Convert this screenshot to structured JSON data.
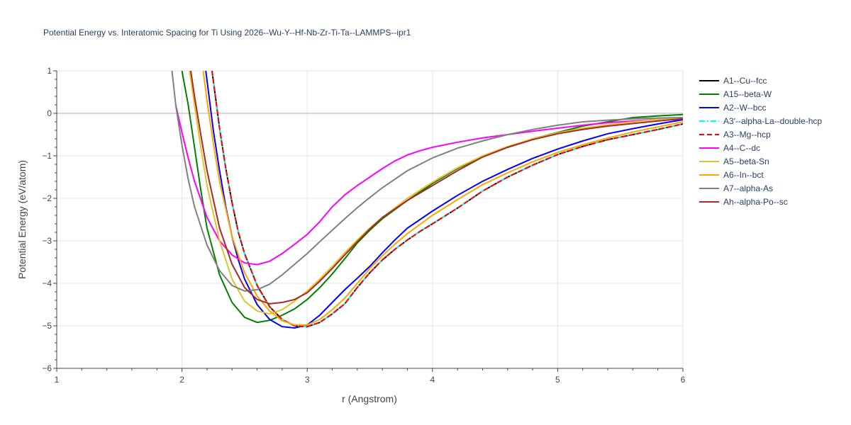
{
  "chart_data": {
    "type": "line",
    "title": "Potential Energy vs. Interatomic Spacing for Ti Using 2026--Wu-Y--Hf-Nb-Zr-Ti-Ta--LAMMPS--ipr1",
    "xlabel": "r (Angstrom)",
    "ylabel": "Potential Energy (eV/atom)",
    "xlim": [
      1,
      6
    ],
    "ylim": [
      -6,
      1
    ],
    "xticks": [
      1,
      2,
      3,
      4,
      5,
      6
    ],
    "yticks": [
      -6,
      -5,
      -4,
      -3,
      -2,
      -1,
      0,
      1
    ],
    "xtick_labels": [
      "1",
      "2",
      "3",
      "4",
      "5",
      "6"
    ],
    "ytick_labels": [
      "−6",
      "−5",
      "−4",
      "−3",
      "−2",
      "−1",
      "0",
      "1"
    ],
    "grid": true,
    "legend_position": "right",
    "series": [
      {
        "name": "A1--Cu--fcc",
        "color": "#000000",
        "dash": "solid",
        "x": [
          2.24,
          2.3,
          2.35,
          2.4,
          2.45,
          2.5,
          2.6,
          2.7,
          2.8,
          2.9,
          3.0,
          3.1,
          3.2,
          3.3,
          3.4,
          3.5,
          3.6,
          3.7,
          3.8,
          3.9,
          4.0,
          4.2,
          4.4,
          4.6,
          4.8,
          5.0,
          5.2,
          5.4,
          5.6,
          5.8,
          6.0
        ],
        "y": [
          1.0,
          -0.35,
          -1.3,
          -2.1,
          -2.8,
          -3.3,
          -4.05,
          -4.55,
          -4.85,
          -5.0,
          -5.02,
          -4.92,
          -4.72,
          -4.48,
          -4.1,
          -3.75,
          -3.45,
          -3.2,
          -2.98,
          -2.78,
          -2.6,
          -2.23,
          -1.83,
          -1.5,
          -1.22,
          -0.97,
          -0.78,
          -0.62,
          -0.5,
          -0.38,
          -0.25
        ]
      },
      {
        "name": "A15--beta-W",
        "color": "#008000",
        "dash": "solid",
        "x": [
          2.0,
          2.05,
          2.1,
          2.15,
          2.2,
          2.3,
          2.4,
          2.5,
          2.6,
          2.7,
          2.8,
          2.9,
          3.0,
          3.1,
          3.2,
          3.3,
          3.4,
          3.5,
          3.6,
          3.8,
          4.0,
          4.2,
          4.4,
          4.6,
          4.8,
          5.0,
          5.2,
          5.4,
          5.6,
          5.8,
          6.0
        ],
        "y": [
          1.0,
          0.2,
          -0.8,
          -1.8,
          -2.7,
          -3.8,
          -4.45,
          -4.8,
          -4.92,
          -4.87,
          -4.75,
          -4.6,
          -4.38,
          -4.1,
          -3.78,
          -3.42,
          -3.05,
          -2.75,
          -2.48,
          -2.05,
          -1.65,
          -1.3,
          -1.02,
          -0.8,
          -0.6,
          -0.45,
          -0.3,
          -0.2,
          -0.1,
          -0.06,
          -0.03
        ]
      },
      {
        "name": "A2--W--bcc",
        "color": "#0000ff",
        "dash": "solid",
        "x": [
          2.19,
          2.25,
          2.3,
          2.35,
          2.4,
          2.45,
          2.5,
          2.6,
          2.7,
          2.8,
          2.9,
          3.0,
          3.1,
          3.2,
          3.3,
          3.4,
          3.5,
          3.6,
          3.7,
          3.8,
          4.0,
          4.2,
          4.4,
          4.6,
          4.8,
          5.0,
          5.2,
          5.4,
          5.6,
          5.8,
          6.0
        ],
        "y": [
          1.0,
          -0.4,
          -1.35,
          -2.2,
          -2.9,
          -3.45,
          -3.9,
          -4.5,
          -4.85,
          -5.02,
          -5.05,
          -4.98,
          -4.75,
          -4.45,
          -4.15,
          -3.88,
          -3.6,
          -3.28,
          -2.98,
          -2.7,
          -2.3,
          -1.93,
          -1.6,
          -1.32,
          -1.06,
          -0.84,
          -0.65,
          -0.48,
          -0.36,
          -0.25,
          -0.15
        ]
      },
      {
        "name": "A3'--alpha-La--double-hcp",
        "color": "#00ffff",
        "dash": "dashdot",
        "x": [
          2.24,
          2.3,
          2.35,
          2.4,
          2.45,
          2.5,
          2.6,
          2.7,
          2.8,
          2.9,
          3.0,
          3.1,
          3.2,
          3.3,
          3.4,
          3.5,
          3.6,
          3.7,
          3.8,
          3.9,
          4.0,
          4.2,
          4.4,
          4.6,
          4.8,
          5.0,
          5.2,
          5.4,
          5.6,
          5.8,
          6.0
        ],
        "y": [
          1.0,
          -0.35,
          -1.3,
          -2.1,
          -2.8,
          -3.3,
          -4.05,
          -4.55,
          -4.85,
          -5.0,
          -5.02,
          -4.92,
          -4.72,
          -4.48,
          -4.1,
          -3.75,
          -3.45,
          -3.2,
          -2.98,
          -2.78,
          -2.6,
          -2.23,
          -1.83,
          -1.5,
          -1.22,
          -0.97,
          -0.78,
          -0.62,
          -0.5,
          -0.38,
          -0.25
        ]
      },
      {
        "name": "A3--Mg--hcp",
        "color": "#ff0000",
        "dash": "dash",
        "x": [
          2.24,
          2.3,
          2.35,
          2.4,
          2.45,
          2.5,
          2.6,
          2.7,
          2.8,
          2.9,
          3.0,
          3.1,
          3.2,
          3.3,
          3.4,
          3.5,
          3.6,
          3.7,
          3.8,
          3.9,
          4.0,
          4.2,
          4.4,
          4.6,
          4.8,
          5.0,
          5.2,
          5.4,
          5.6,
          5.8,
          6.0
        ],
        "y": [
          1.0,
          -0.35,
          -1.3,
          -2.1,
          -2.8,
          -3.3,
          -4.05,
          -4.55,
          -4.85,
          -5.0,
          -5.02,
          -4.92,
          -4.72,
          -4.48,
          -4.1,
          -3.75,
          -3.45,
          -3.2,
          -2.98,
          -2.78,
          -2.6,
          -2.23,
          -1.83,
          -1.5,
          -1.22,
          -0.97,
          -0.78,
          -0.62,
          -0.5,
          -0.38,
          -0.25
        ]
      },
      {
        "name": "A4--C--dc",
        "color": "#ff00ff",
        "dash": "solid",
        "x": [
          1.95,
          2.0,
          2.05,
          2.1,
          2.2,
          2.3,
          2.4,
          2.5,
          2.6,
          2.7,
          2.8,
          2.9,
          3.0,
          3.1,
          3.2,
          3.3,
          3.4,
          3.5,
          3.6,
          3.7,
          3.8,
          3.9,
          4.0,
          4.2,
          4.4,
          4.6,
          4.8,
          5.0,
          5.2,
          5.4,
          5.6,
          5.8,
          6.0
        ],
        "y": [
          0.2,
          -0.45,
          -1.05,
          -1.6,
          -2.45,
          -3.0,
          -3.33,
          -3.52,
          -3.56,
          -3.48,
          -3.3,
          -3.08,
          -2.85,
          -2.55,
          -2.2,
          -1.92,
          -1.7,
          -1.5,
          -1.3,
          -1.12,
          -0.98,
          -0.88,
          -0.8,
          -0.68,
          -0.58,
          -0.5,
          -0.42,
          -0.35,
          -0.28,
          -0.22,
          -0.18,
          -0.14,
          -0.1
        ]
      },
      {
        "name": "A5--beta-Sn",
        "color": "#e6c229",
        "dash": "solid",
        "x": [
          2.06,
          2.1,
          2.15,
          2.2,
          2.3,
          2.4,
          2.5,
          2.6,
          2.7,
          2.8,
          2.9,
          3.0,
          3.1,
          3.2,
          3.3,
          3.4,
          3.5,
          3.6,
          3.8,
          4.0,
          4.2,
          4.4,
          4.6,
          4.8,
          5.0,
          5.2,
          5.4,
          5.6,
          5.8,
          6.0
        ],
        "y": [
          1.0,
          0.2,
          -0.8,
          -1.7,
          -3.0,
          -3.9,
          -4.42,
          -4.65,
          -4.72,
          -4.62,
          -4.42,
          -4.18,
          -3.9,
          -3.6,
          -3.28,
          -2.98,
          -2.7,
          -2.45,
          -2.0,
          -1.62,
          -1.28,
          -1.0,
          -0.78,
          -0.6,
          -0.46,
          -0.35,
          -0.27,
          -0.2,
          -0.14,
          -0.1
        ]
      },
      {
        "name": "A6--In--bct",
        "color": "#ffa500",
        "dash": "solid",
        "x": [
          2.17,
          2.2,
          2.25,
          2.3,
          2.4,
          2.5,
          2.6,
          2.7,
          2.8,
          2.9,
          3.0,
          3.1,
          3.2,
          3.3,
          3.4,
          3.5,
          3.6,
          3.7,
          3.8,
          4.0,
          4.2,
          4.4,
          4.6,
          4.8,
          5.0,
          5.2,
          5.4,
          5.6,
          5.8,
          6.0
        ],
        "y": [
          1.0,
          0.3,
          -0.7,
          -1.6,
          -2.9,
          -3.75,
          -4.3,
          -4.65,
          -4.88,
          -4.98,
          -4.98,
          -4.85,
          -4.62,
          -4.35,
          -4.0,
          -3.65,
          -3.35,
          -3.08,
          -2.83,
          -2.4,
          -2.03,
          -1.68,
          -1.4,
          -1.14,
          -0.92,
          -0.74,
          -0.58,
          -0.44,
          -0.32,
          -0.2
        ]
      },
      {
        "name": "A7--alpha-As",
        "color": "#808080",
        "dash": "solid",
        "x": [
          1.92,
          1.95,
          2.0,
          2.05,
          2.1,
          2.2,
          2.3,
          2.4,
          2.5,
          2.6,
          2.7,
          2.8,
          2.9,
          3.0,
          3.1,
          3.2,
          3.3,
          3.4,
          3.5,
          3.6,
          3.7,
          3.8,
          4.0,
          4.2,
          4.4,
          4.6,
          4.8,
          5.0,
          5.2,
          5.4,
          5.6,
          5.8,
          6.0
        ],
        "y": [
          1.0,
          0.2,
          -0.75,
          -1.55,
          -2.2,
          -3.1,
          -3.7,
          -4.05,
          -4.18,
          -4.15,
          -4.02,
          -3.8,
          -3.55,
          -3.3,
          -3.02,
          -2.75,
          -2.48,
          -2.22,
          -1.98,
          -1.75,
          -1.55,
          -1.35,
          -1.05,
          -0.82,
          -0.65,
          -0.5,
          -0.38,
          -0.28,
          -0.2,
          -0.16,
          -0.13,
          -0.11,
          -0.1
        ]
      },
      {
        "name": "Ah--alpha-Po--sc",
        "color": "#a52a2a",
        "dash": "solid",
        "x": [
          2.07,
          2.1,
          2.15,
          2.2,
          2.3,
          2.4,
          2.5,
          2.6,
          2.7,
          2.8,
          2.9,
          3.0,
          3.1,
          3.2,
          3.3,
          3.4,
          3.5,
          3.6,
          3.8,
          4.0,
          4.2,
          4.4,
          4.6,
          4.8,
          5.0,
          5.2,
          5.4,
          5.6,
          5.8,
          6.0
        ],
        "y": [
          1.0,
          0.4,
          -0.5,
          -1.35,
          -2.7,
          -3.55,
          -4.1,
          -4.38,
          -4.48,
          -4.45,
          -4.38,
          -4.22,
          -3.95,
          -3.65,
          -3.33,
          -3.02,
          -2.72,
          -2.45,
          -2.05,
          -1.7,
          -1.35,
          -1.03,
          -0.8,
          -0.62,
          -0.48,
          -0.38,
          -0.3,
          -0.24,
          -0.18,
          -0.13
        ]
      }
    ]
  }
}
